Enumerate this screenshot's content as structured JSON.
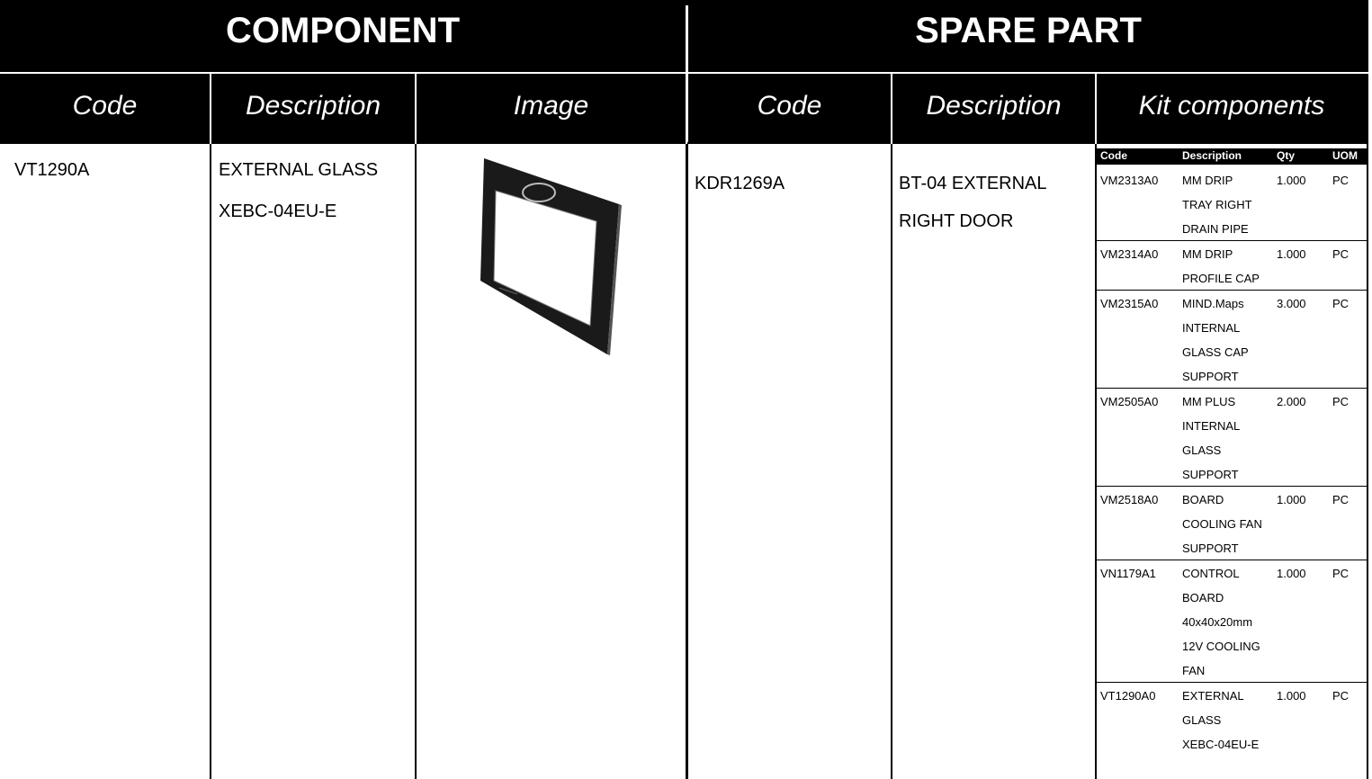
{
  "header": {
    "component": "COMPONENT",
    "spare_part": "SPARE PART"
  },
  "columns": {
    "component": [
      "Code",
      "Description",
      "Image"
    ],
    "spare_part": [
      "Code",
      "Description",
      "Kit components"
    ]
  },
  "component": {
    "code": "VT1290A",
    "description": [
      "EXTERNAL GLASS",
      "XEBC-04EU-E"
    ]
  },
  "spare_part": {
    "code": "KDR1269A",
    "description": [
      "BT-04 EXTERNAL",
      "RIGHT DOOR"
    ]
  },
  "kit": {
    "columns": [
      "Code",
      "Description",
      "Qty",
      "UOM"
    ],
    "rows": [
      {
        "code": "VM2313A0",
        "description": [
          "MM DRIP",
          "TRAY RIGHT",
          "DRAIN PIPE"
        ],
        "qty": "1.000",
        "uom": "PC"
      },
      {
        "code": "VM2314A0",
        "description": [
          "MM DRIP",
          "PROFILE CAP"
        ],
        "qty": "1.000",
        "uom": "PC"
      },
      {
        "code": "VM2315A0",
        "description": [
          "MIND.Maps",
          "INTERNAL",
          "GLASS CAP",
          "SUPPORT"
        ],
        "qty": "3.000",
        "uom": "PC"
      },
      {
        "code": "VM2505A0",
        "description": [
          "MM PLUS",
          "INTERNAL",
          "GLASS",
          "SUPPORT"
        ],
        "qty": "2.000",
        "uom": "PC"
      },
      {
        "code": "VM2518A0",
        "description": [
          "BOARD",
          "COOLING FAN",
          "SUPPORT"
        ],
        "qty": "1.000",
        "uom": "PC"
      },
      {
        "code": "VN1179A1",
        "description": [
          "CONTROL",
          "BOARD",
          "40x40x20mm",
          "12V COOLING",
          "FAN"
        ],
        "qty": "1.000",
        "uom": "PC"
      },
      {
        "code": "VT1290A0",
        "description": [
          "EXTERNAL",
          "GLASS",
          "XEBC-04EU-E"
        ],
        "qty": "1.000",
        "uom": "PC"
      }
    ]
  }
}
